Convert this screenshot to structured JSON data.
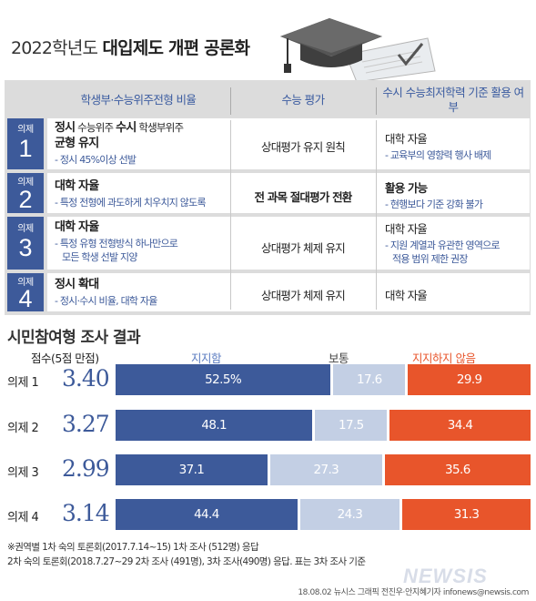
{
  "title": {
    "year": "2022학년도",
    "main": "대입제도 개편 공론화"
  },
  "table": {
    "headers": [
      "학생부·수능위주전형 비율",
      "수능 평가",
      "수시 수능최저학력 기준 활용 여부"
    ],
    "rows": [
      {
        "badge_label": "의제",
        "badge_num": "1",
        "c1_main_a": "정시",
        "c1_small_a": " 수능위주 ",
        "c1_main_b": "수시",
        "c1_small_b": " 학생부위주",
        "c1_main2": "균형 유지",
        "c1_sub": "- 정시 45%이상 선발",
        "c2": "상대평가 유지 원칙",
        "c2_bold": false,
        "c3_main": "대학 자율",
        "c3_bold": false,
        "c3_sub": "- 교육부의 영향력 행사 배제"
      },
      {
        "badge_label": "의제",
        "badge_num": "2",
        "c1_main": "대학 자율",
        "c1_sub": "- 특정 전형에 과도하게 치우치지 않도록",
        "c2": "전 과목 절대평가 전환",
        "c2_bold": true,
        "c3_main": "활용 가능",
        "c3_bold": true,
        "c3_sub": "- 현행보다 기준 강화 불가"
      },
      {
        "badge_label": "의제",
        "badge_num": "3",
        "c1_main": "대학 자율",
        "c1_sub": "- 특정 유형 전형방식 하나만으로",
        "c1_sub2": "모든 학생 선발 지양",
        "c2": "상대평가 체제 유지",
        "c2_bold": false,
        "c3_main": "대학 자율",
        "c3_bold": false,
        "c3_sub": "- 지원 계열과 유관한 영역으로",
        "c3_sub2": "적용 범위 제한 권장"
      },
      {
        "badge_label": "의제",
        "badge_num": "4",
        "c1_main": "정시 확대",
        "c1_sub": "- 정시·수시 비율, 대학 자율",
        "c2": "상대평가 체제 유지",
        "c2_bold": false,
        "c3_main": "대학 자율",
        "c3_bold": false
      }
    ]
  },
  "survey": {
    "title": "시민참여형 조사 결과",
    "score_header": "점수(5점 만점)",
    "legend": [
      "지지함",
      "보통",
      "지지하지 않음"
    ]
  },
  "chart_data": {
    "type": "bar",
    "stacked": true,
    "orientation": "horizontal",
    "categories": [
      "의제 1",
      "의제 2",
      "의제 3",
      "의제 4"
    ],
    "scores": [
      "3.40",
      "3.27",
      "2.99",
      "3.14"
    ],
    "series": [
      {
        "name": "지지함",
        "values": [
          52.5,
          48.1,
          37.1,
          44.4
        ],
        "labels": [
          "52.5%",
          "48.1",
          "37.1",
          "44.4"
        ],
        "color": "#3d5a9a",
        "text_color": "#ffffff"
      },
      {
        "name": "보통",
        "values": [
          17.6,
          17.5,
          27.3,
          24.3
        ],
        "labels": [
          "17.6",
          "17.5",
          "27.3",
          "24.3"
        ],
        "color": "#c3cfe4",
        "text_color": "#ffffff"
      },
      {
        "name": "지지하지 않음",
        "values": [
          29.9,
          34.4,
          35.6,
          31.3
        ],
        "labels": [
          "29.9",
          "34.4",
          "35.6",
          "31.3"
        ],
        "color": "#e8552b",
        "text_color": "#ffffff"
      }
    ],
    "legend_colors": [
      "#5a7bc0",
      "#444444",
      "#e8552b"
    ]
  },
  "notes": [
    "※권역별 1차 숙의 토론회(2017.7.14~15) 1차 조사 (512명) 응답",
    "2차 숙의 토론회(2018.7.27~29 2차 조사 (491명), 3차 조사(490명) 응답. 표는 3차 조사 기준"
  ],
  "credit": "18.08.02  뉴시스 그래픽 전진우·안지혜기자  infonews@newsis.com",
  "logo": "NEWSIS",
  "colors": {
    "navy": "#3d5a9a",
    "orange": "#e8552b",
    "light_blue": "#c3cfe4",
    "panel_gray": "#dcdcdc"
  }
}
